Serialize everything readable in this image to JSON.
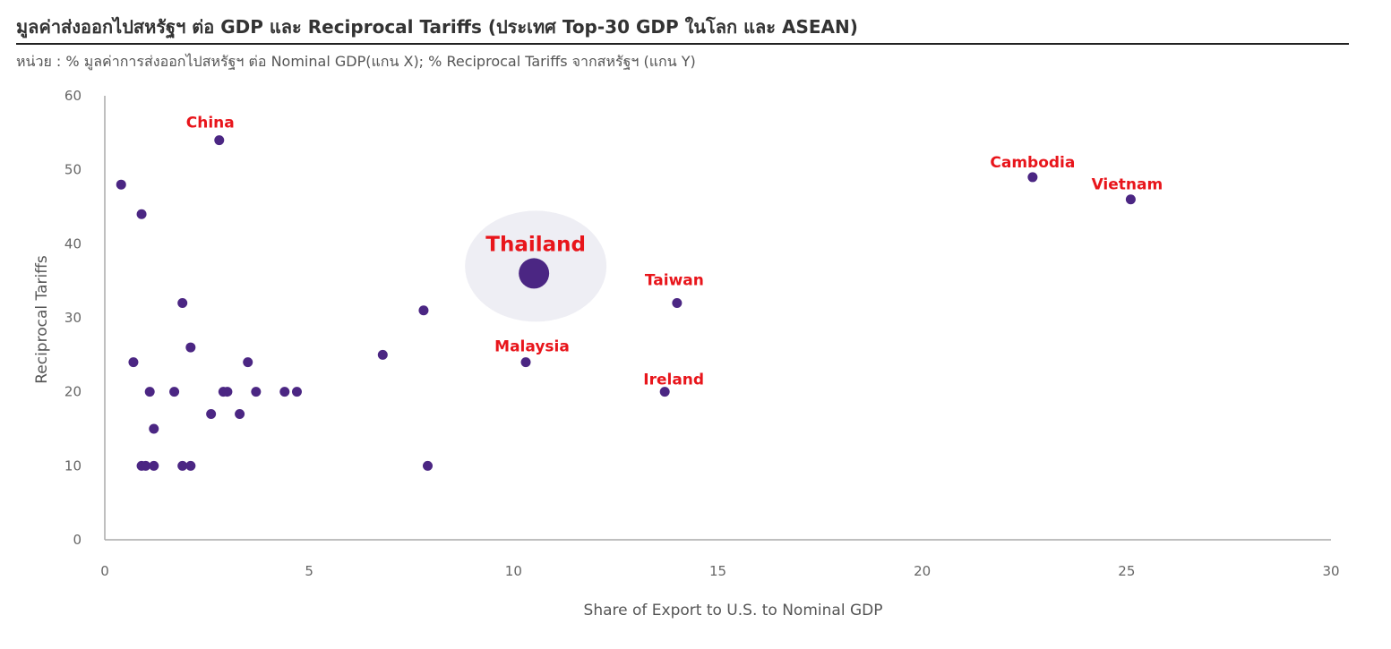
{
  "header": {
    "title": "มูลค่าส่งออกไปสหรัฐฯ ต่อ GDP และ Reciprocal Tariffs (ประเทศ Top-30 GDP ในโลก และ ASEAN)",
    "subtitle": "หน่วย : % มูลค่าการส่งออกไปสหรัฐฯ ต่อ Nominal GDP(แกน X); % Reciprocal Tariffs จากสหรัฐฯ (แกน Y)"
  },
  "colors": {
    "point": "#4b2683",
    "label": "#e8151b",
    "highlight": "#eeeef4",
    "axis": "#aaaaaa"
  },
  "chart_data": {
    "type": "scatter",
    "xlabel": "Share of Export to U.S. to Nominal GDP",
    "ylabel": "Reciprocal Tariffs",
    "xlim": [
      0,
      30
    ],
    "ylim": [
      0,
      60
    ],
    "x_ticks": [
      "0",
      "5",
      "10",
      "15",
      "20",
      "25",
      "30"
    ],
    "y_ticks": [
      "0",
      "10",
      "20",
      "30",
      "40",
      "50",
      "60"
    ],
    "grid": false,
    "highlight": "Thailand",
    "points": [
      {
        "label": "China",
        "x": 2.8,
        "y": 54
      },
      {
        "label": "Cambodia",
        "x": 22.7,
        "y": 49
      },
      {
        "label": "Vietnam",
        "x": 25.1,
        "y": 46
      },
      {
        "label": "Thailand",
        "x": 10.5,
        "y": 36
      },
      {
        "label": "Taiwan",
        "x": 14.0,
        "y": 32
      },
      {
        "label": "Malaysia",
        "x": 10.3,
        "y": 24
      },
      {
        "label": "Ireland",
        "x": 13.7,
        "y": 20
      },
      {
        "label": "",
        "x": 0.4,
        "y": 48
      },
      {
        "label": "",
        "x": 0.9,
        "y": 44
      },
      {
        "label": "",
        "x": 1.9,
        "y": 32
      },
      {
        "label": "",
        "x": 2.1,
        "y": 26
      },
      {
        "label": "",
        "x": 0.7,
        "y": 24
      },
      {
        "label": "",
        "x": 3.5,
        "y": 24
      },
      {
        "label": "",
        "x": 1.1,
        "y": 20
      },
      {
        "label": "",
        "x": 1.7,
        "y": 20
      },
      {
        "label": "",
        "x": 2.9,
        "y": 20
      },
      {
        "label": "",
        "x": 3.0,
        "y": 20
      },
      {
        "label": "",
        "x": 3.7,
        "y": 20
      },
      {
        "label": "",
        "x": 4.4,
        "y": 20
      },
      {
        "label": "",
        "x": 4.7,
        "y": 20
      },
      {
        "label": "",
        "x": 2.6,
        "y": 17
      },
      {
        "label": "",
        "x": 3.3,
        "y": 17
      },
      {
        "label": "",
        "x": 1.2,
        "y": 15
      },
      {
        "label": "",
        "x": 0.9,
        "y": 10
      },
      {
        "label": "",
        "x": 1.0,
        "y": 10
      },
      {
        "label": "",
        "x": 1.2,
        "y": 10
      },
      {
        "label": "",
        "x": 1.9,
        "y": 10
      },
      {
        "label": "",
        "x": 2.1,
        "y": 10
      },
      {
        "label": "",
        "x": 6.8,
        "y": 25
      },
      {
        "label": "",
        "x": 7.8,
        "y": 31
      },
      {
        "label": "",
        "x": 7.9,
        "y": 10
      }
    ]
  }
}
